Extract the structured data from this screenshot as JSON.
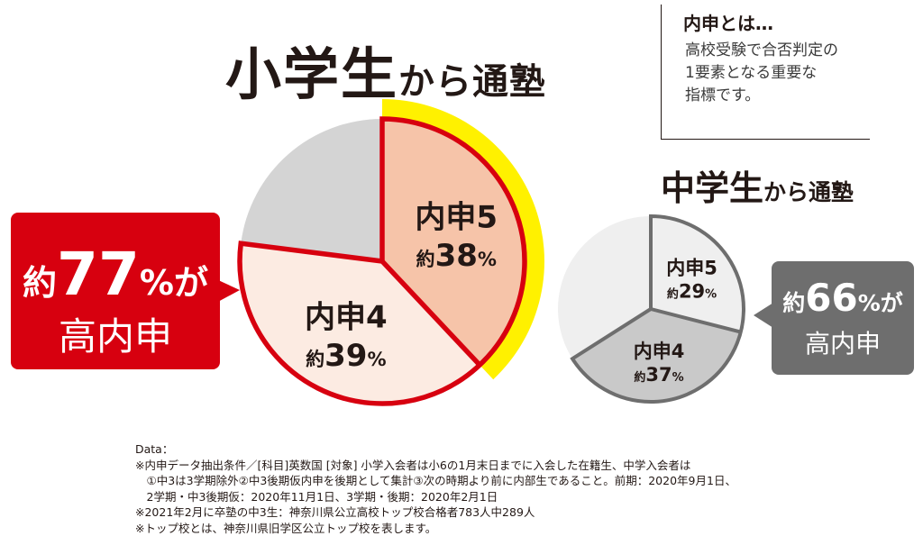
{
  "main_title": {
    "main": "小学生",
    "suffix": "から通塾"
  },
  "sub_title": {
    "main": "中学生",
    "suffix": "から通塾"
  },
  "naishin_note": {
    "heading": "内申とは…",
    "lines": [
      "高校受験で合否判定の",
      "1要素となる重要な",
      "指標です。"
    ]
  },
  "callout_elementary": {
    "prefix": "約",
    "number": "77",
    "unit": "%が",
    "label": "高内申"
  },
  "callout_junior": {
    "prefix": "約",
    "number": "66",
    "unit": "%が",
    "label": "高内申"
  },
  "colors": {
    "red": "#d7000f",
    "yellow": "#fff100",
    "salmon": "#f6c4a9",
    "pale_pink": "#fcebe2",
    "gray": "#d4d4d4",
    "dark_gray": "#6e6e6e",
    "light_gray": "#efefef",
    "mid_gray": "#c9c9c9"
  },
  "chart_data": [
    {
      "type": "pie",
      "title": "小学生から通塾",
      "slices": [
        {
          "label": "内申5",
          "value": 38,
          "value_label": "約38%"
        },
        {
          "label": "内申4",
          "value": 39,
          "value_label": "約39%"
        },
        {
          "label": "",
          "value": 23,
          "value_label": ""
        }
      ]
    },
    {
      "type": "pie",
      "title": "中学生から通塾",
      "slices": [
        {
          "label": "内申5",
          "value": 29,
          "value_label": "約29%"
        },
        {
          "label": "内申4",
          "value": 37,
          "value_label": "約37%"
        },
        {
          "label": "",
          "value": 34,
          "value_label": ""
        }
      ]
    }
  ],
  "footnotes": [
    "Data：",
    "※内申データ抽出条件／[科目]英数国 [対象] 小学入会者は小6の1月末日までに入会した在籍生、中学入会者は",
    "　①中3は3学期除外②中3後期仮内申を後期として集計③次の時期より前に内部生であること。前期：2020年9月1日、",
    "　2学期・中3後期仮：2020年11月1日、3学期・後期：2020年2月1日",
    "※2021年2月に卒塾の中3生：神奈川県公立高校トップ校合格者783人中289人",
    "※トップ校とは、神奈川県旧学区公立トップ校を表します。"
  ]
}
